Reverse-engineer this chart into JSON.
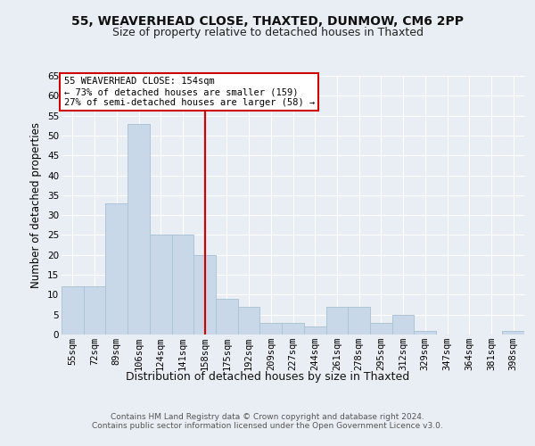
{
  "title1": "55, WEAVERHEAD CLOSE, THAXTED, DUNMOW, CM6 2PP",
  "title2": "Size of property relative to detached houses in Thaxted",
  "xlabel": "Distribution of detached houses by size in Thaxted",
  "ylabel": "Number of detached properties",
  "categories": [
    "55sqm",
    "72sqm",
    "89sqm",
    "106sqm",
    "124sqm",
    "141sqm",
    "158sqm",
    "175sqm",
    "192sqm",
    "209sqm",
    "227sqm",
    "244sqm",
    "261sqm",
    "278sqm",
    "295sqm",
    "312sqm",
    "329sqm",
    "347sqm",
    "364sqm",
    "381sqm",
    "398sqm"
  ],
  "values": [
    12,
    12,
    33,
    53,
    25,
    25,
    20,
    9,
    7,
    3,
    3,
    2,
    7,
    7,
    3,
    5,
    1,
    0,
    0,
    0,
    1
  ],
  "bar_color": "#c8d8e8",
  "bar_edge_color": "#a8c0d0",
  "vline_x": 6,
  "vline_color": "#cc0000",
  "annotation_text": "55 WEAVERHEAD CLOSE: 154sqm\n← 73% of detached houses are smaller (159)\n27% of semi-detached houses are larger (58) →",
  "annotation_box_color": "white",
  "annotation_box_edge": "#cc0000",
  "ylim": [
    0,
    65
  ],
  "yticks": [
    0,
    5,
    10,
    15,
    20,
    25,
    30,
    35,
    40,
    45,
    50,
    55,
    60,
    65
  ],
  "background_color": "#e8eef4",
  "plot_bg_color": "#e8eef4",
  "footer_text": "Contains HM Land Registry data © Crown copyright and database right 2024.\nContains public sector information licensed under the Open Government Licence v3.0.",
  "grid_color": "#ffffff",
  "title_fontsize": 10,
  "subtitle_fontsize": 9,
  "tick_fontsize": 7.5,
  "ylabel_fontsize": 8.5,
  "xlabel_fontsize": 9
}
